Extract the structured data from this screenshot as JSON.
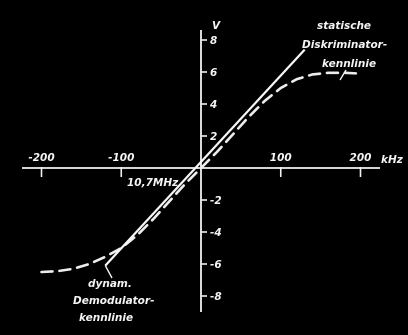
{
  "chart_data": {
    "type": "line",
    "xlim": [
      -200,
      200
    ],
    "ylim": [
      -8,
      8
    ],
    "x_unit": "kHz",
    "y_unit": "V",
    "x_ticks": [
      {
        "value": -200,
        "label": "-200"
      },
      {
        "value": -100,
        "label": "-100"
      },
      {
        "value": 100,
        "label": "100"
      },
      {
        "value": 200,
        "label": "200"
      }
    ],
    "y_ticks": [
      {
        "value": 8,
        "label": "8"
      },
      {
        "value": 6,
        "label": "6"
      },
      {
        "value": 4,
        "label": "4"
      },
      {
        "value": 2,
        "label": "2"
      },
      {
        "value": -2,
        "label": "-2"
      },
      {
        "value": -4,
        "label": "-4"
      },
      {
        "value": -6,
        "label": "-6"
      },
      {
        "value": -8,
        "label": "-8"
      }
    ],
    "center_label": "10,7MHz",
    "series": [
      {
        "key": "static",
        "name_lines": [
          "statische",
          "Diskriminator-",
          "kennlinie"
        ],
        "style": "dashed",
        "points": [
          [
            -200,
            -6.5
          ],
          [
            -180,
            -6.45
          ],
          [
            -160,
            -6.3
          ],
          [
            -140,
            -6.0
          ],
          [
            -120,
            -5.55
          ],
          [
            -100,
            -5.0
          ],
          [
            -80,
            -4.2
          ],
          [
            -60,
            -3.2
          ],
          [
            -40,
            -2.1
          ],
          [
            -20,
            -1.0
          ],
          [
            0,
            0
          ],
          [
            20,
            1.0
          ],
          [
            40,
            2.1
          ],
          [
            60,
            3.2
          ],
          [
            80,
            4.2
          ],
          [
            100,
            5.0
          ],
          [
            120,
            5.55
          ],
          [
            140,
            5.85
          ],
          [
            160,
            5.95
          ],
          [
            180,
            5.95
          ],
          [
            200,
            5.9
          ]
        ]
      },
      {
        "key": "dynamic",
        "name_lines": [
          "dynam.",
          "Demodulator-",
          "kennlinie"
        ],
        "style": "solid",
        "points": [
          [
            -120,
            -6.1
          ],
          [
            130,
            7.4
          ]
        ]
      }
    ]
  }
}
